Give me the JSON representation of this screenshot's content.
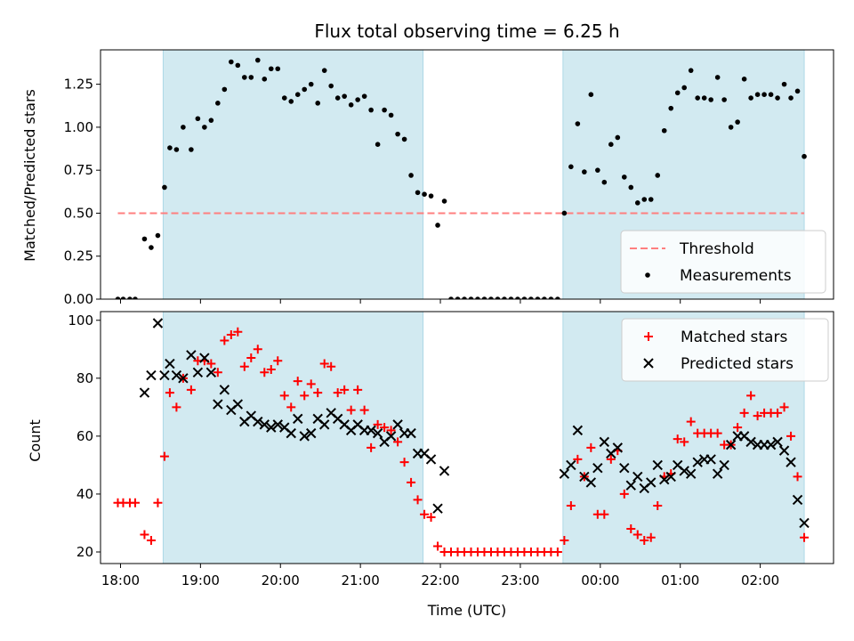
{
  "chart_data": [
    {
      "type": "scatter",
      "panel": "top",
      "title": "Flux total observing time = 6.25 h",
      "xlabel": "",
      "ylabel": "Matched/Predicted stars",
      "xlim": [
        "17:45",
        "02:55"
      ],
      "ylim": [
        0,
        1.45
      ],
      "x_tick_labels": [
        "18:00",
        "19:00",
        "20:00",
        "21:00",
        "22:00",
        "23:00",
        "00:00",
        "01:00",
        "02:00"
      ],
      "y_ticks": [
        "0.00",
        "0.25",
        "0.50",
        "0.75",
        "1.00",
        "1.25"
      ],
      "grid": false,
      "legend_position": "lower-right",
      "shaded_intervals": [
        [
          "18:32",
          "21:47"
        ],
        [
          "23:32",
          "02:33"
        ]
      ],
      "shade_color": "#add8e6",
      "series": [
        {
          "name": "Threshold",
          "style": "dashed-line",
          "color": "#ff7f7f",
          "x": [
            "17:58",
            "02:33"
          ],
          "values": [
            0.5,
            0.5
          ]
        },
        {
          "name": "Measurements",
          "style": "dot",
          "color": "#000000",
          "x": [
            "17:58",
            "18:02",
            "18:07",
            "18:11",
            "18:18",
            "18:23",
            "18:28",
            "18:33",
            "18:37",
            "18:42",
            "18:47",
            "18:53",
            "18:58",
            "19:03",
            "19:08",
            "19:13",
            "19:18",
            "19:23",
            "19:28",
            "19:33",
            "19:38",
            "19:43",
            "19:48",
            "19:53",
            "19:58",
            "20:03",
            "20:08",
            "20:13",
            "20:18",
            "20:23",
            "20:28",
            "20:33",
            "20:38",
            "20:43",
            "20:48",
            "20:53",
            "20:58",
            "21:03",
            "21:08",
            "21:13",
            "21:18",
            "21:23",
            "21:28",
            "21:33",
            "21:38",
            "21:43",
            "21:48",
            "21:53",
            "21:58",
            "22:03",
            "22:08",
            "22:13",
            "22:18",
            "22:23",
            "22:28",
            "22:33",
            "22:38",
            "22:43",
            "22:48",
            "22:53",
            "22:58",
            "23:03",
            "23:08",
            "23:13",
            "23:18",
            "23:23",
            "23:28",
            "23:33",
            "23:38",
            "23:43",
            "23:48",
            "23:53",
            "23:58",
            "00:03",
            "00:08",
            "00:13",
            "00:18",
            "00:23",
            "00:28",
            "00:33",
            "00:38",
            "00:43",
            "00:48",
            "00:53",
            "00:58",
            "01:03",
            "01:08",
            "01:13",
            "01:18",
            "01:23",
            "01:28",
            "01:33",
            "01:38",
            "01:43",
            "01:48",
            "01:53",
            "01:58",
            "02:03",
            "02:08",
            "02:13",
            "02:18",
            "02:23",
            "02:28",
            "02:33"
          ],
          "values": [
            0.0,
            0.0,
            0.0,
            0.0,
            0.35,
            0.3,
            0.37,
            0.65,
            0.88,
            0.87,
            1.0,
            0.87,
            1.05,
            1.0,
            1.04,
            1.14,
            1.22,
            1.38,
            1.36,
            1.29,
            1.29,
            1.39,
            1.28,
            1.34,
            1.34,
            1.17,
            1.15,
            1.19,
            1.22,
            1.25,
            1.14,
            1.33,
            1.24,
            1.17,
            1.18,
            1.13,
            1.16,
            1.18,
            1.1,
            0.9,
            1.1,
            1.07,
            0.96,
            0.93,
            0.72,
            0.62,
            0.61,
            0.6,
            0.43,
            0.57,
            0.0,
            0.0,
            0.0,
            0.0,
            0.0,
            0.0,
            0.0,
            0.0,
            0.0,
            0.0,
            0.0,
            0.0,
            0.0,
            0.0,
            0.0,
            0.0,
            0.0,
            0.5,
            0.77,
            1.02,
            0.74,
            1.19,
            0.75,
            0.68,
            0.9,
            0.94,
            0.71,
            0.65,
            0.56,
            0.58,
            0.58,
            0.72,
            0.98,
            1.11,
            1.2,
            1.23,
            1.33,
            1.17,
            1.17,
            1.16,
            1.29,
            1.16,
            1.0,
            1.03,
            1.28,
            1.17,
            1.19,
            1.19,
            1.19,
            1.17,
            1.25,
            1.17,
            1.21,
            0.83
          ]
        }
      ]
    },
    {
      "type": "scatter",
      "panel": "bottom",
      "title": "",
      "xlabel": "Time (UTC)",
      "ylabel": "Count",
      "xlim": [
        "17:45",
        "02:55"
      ],
      "ylim": [
        16,
        103
      ],
      "x_tick_labels": [
        "18:00",
        "19:00",
        "20:00",
        "21:00",
        "22:00",
        "23:00",
        "00:00",
        "01:00",
        "02:00"
      ],
      "y_ticks": [
        "20",
        "40",
        "60",
        "80",
        "100"
      ],
      "grid": false,
      "legend_position": "upper-right",
      "shaded_intervals": [
        [
          "18:32",
          "21:47"
        ],
        [
          "23:32",
          "02:33"
        ]
      ],
      "shade_color": "#add8e6",
      "series": [
        {
          "name": "Matched stars",
          "style": "plus",
          "color": "#ff0000",
          "x": [
            "17:58",
            "18:02",
            "18:07",
            "18:11",
            "18:18",
            "18:23",
            "18:28",
            "18:33",
            "18:37",
            "18:42",
            "18:47",
            "18:53",
            "18:58",
            "19:03",
            "19:08",
            "19:13",
            "19:18",
            "19:23",
            "19:28",
            "19:33",
            "19:38",
            "19:43",
            "19:48",
            "19:53",
            "19:58",
            "20:03",
            "20:08",
            "20:13",
            "20:18",
            "20:23",
            "20:28",
            "20:33",
            "20:38",
            "20:43",
            "20:48",
            "20:53",
            "20:58",
            "21:03",
            "21:08",
            "21:13",
            "21:18",
            "21:23",
            "21:28",
            "21:33",
            "21:38",
            "21:43",
            "21:48",
            "21:53",
            "21:58",
            "22:03",
            "22:08",
            "22:13",
            "22:18",
            "22:23",
            "22:28",
            "22:33",
            "22:38",
            "22:43",
            "22:48",
            "22:53",
            "22:58",
            "23:03",
            "23:08",
            "23:13",
            "23:18",
            "23:23",
            "23:28",
            "23:33",
            "23:38",
            "23:43",
            "23:48",
            "23:53",
            "23:58",
            "00:03",
            "00:08",
            "00:13",
            "00:18",
            "00:23",
            "00:28",
            "00:33",
            "00:38",
            "00:43",
            "00:48",
            "00:53",
            "00:58",
            "01:03",
            "01:08",
            "01:13",
            "01:18",
            "01:23",
            "01:28",
            "01:33",
            "01:38",
            "01:43",
            "01:48",
            "01:53",
            "01:58",
            "02:03",
            "02:08",
            "02:13",
            "02:18",
            "02:23",
            "02:28",
            "02:33"
          ],
          "values": [
            37,
            37,
            37,
            37,
            26,
            24,
            37,
            53,
            75,
            70,
            80,
            76,
            86,
            86,
            85,
            82,
            93,
            95,
            96,
            84,
            87,
            90,
            82,
            83,
            86,
            74,
            70,
            79,
            74,
            78,
            75,
            85,
            84,
            75,
            76,
            69,
            76,
            69,
            56,
            64,
            63,
            62,
            58,
            51,
            44,
            38,
            33,
            32,
            22,
            20,
            20,
            20,
            20,
            20,
            20,
            20,
            20,
            20,
            20,
            20,
            20,
            20,
            20,
            20,
            20,
            20,
            20,
            24,
            36,
            52,
            46,
            56,
            33,
            33,
            52,
            55,
            40,
            28,
            26,
            24,
            25,
            36,
            46,
            47,
            59,
            58,
            65,
            61,
            61,
            61,
            61,
            57,
            57,
            63,
            68,
            74,
            67,
            68,
            68,
            68,
            70,
            60,
            46,
            25
          ]
        },
        {
          "name": "Predicted stars",
          "style": "x",
          "color": "#000000",
          "x": [
            "18:18",
            "18:23",
            "18:28",
            "18:33",
            "18:37",
            "18:42",
            "18:47",
            "18:53",
            "18:58",
            "19:03",
            "19:08",
            "19:13",
            "19:18",
            "19:23",
            "19:28",
            "19:33",
            "19:38",
            "19:43",
            "19:48",
            "19:53",
            "19:58",
            "20:03",
            "20:08",
            "20:13",
            "20:18",
            "20:23",
            "20:28",
            "20:33",
            "20:38",
            "20:43",
            "20:48",
            "20:53",
            "20:58",
            "21:03",
            "21:08",
            "21:13",
            "21:18",
            "21:23",
            "21:28",
            "21:33",
            "21:38",
            "21:43",
            "21:48",
            "21:53",
            "21:58",
            "22:03",
            "23:33",
            "23:38",
            "23:43",
            "23:48",
            "23:53",
            "23:58",
            "00:03",
            "00:08",
            "00:13",
            "00:18",
            "00:23",
            "00:28",
            "00:33",
            "00:38",
            "00:43",
            "00:48",
            "00:53",
            "00:58",
            "01:03",
            "01:08",
            "01:13",
            "01:18",
            "01:23",
            "01:28",
            "01:33",
            "01:38",
            "01:43",
            "01:48",
            "01:53",
            "01:58",
            "02:03",
            "02:08",
            "02:13",
            "02:18",
            "02:23",
            "02:28",
            "02:33"
          ],
          "values": [
            75,
            81,
            99,
            81,
            85,
            81,
            80,
            88,
            82,
            87,
            82,
            71,
            76,
            69,
            71,
            65,
            67,
            65,
            64,
            63,
            64,
            63,
            61,
            66,
            60,
            61,
            66,
            64,
            68,
            66,
            64,
            62,
            64,
            62,
            62,
            61,
            58,
            60,
            64,
            61,
            61,
            54,
            54,
            52,
            35,
            48,
            47,
            50,
            62,
            46,
            44,
            49,
            58,
            54,
            56,
            49,
            43,
            46,
            42,
            44,
            50,
            45,
            46,
            50,
            48,
            47,
            51,
            52,
            52,
            47,
            50,
            57,
            60,
            60,
            58,
            57,
            57,
            57,
            58,
            55,
            51,
            38,
            30
          ]
        }
      ]
    }
  ]
}
